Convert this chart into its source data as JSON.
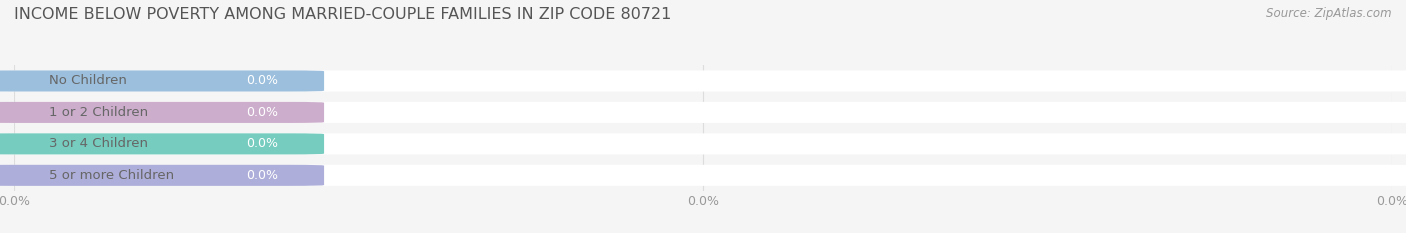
{
  "title": "INCOME BELOW POVERTY AMONG MARRIED-COUPLE FAMILIES IN ZIP CODE 80721",
  "source": "Source: ZipAtlas.com",
  "categories": [
    "No Children",
    "1 or 2 Children",
    "3 or 4 Children",
    "5 or more Children"
  ],
  "values": [
    0.0,
    0.0,
    0.0,
    0.0
  ],
  "bar_colors": [
    "#8ab4d8",
    "#c4a0c4",
    "#5ec4b4",
    "#a0a0d4"
  ],
  "background_color": "#f5f5f5",
  "bar_bg_color": "#ffffff",
  "label_color": "#666666",
  "value_label_color": "#ffffff",
  "title_color": "#555555",
  "source_color": "#999999",
  "bar_height": 0.62,
  "title_fontsize": 11.5,
  "label_fontsize": 9.5,
  "value_fontsize": 9.0,
  "tick_fontsize": 9.0,
  "tick_color": "#999999"
}
